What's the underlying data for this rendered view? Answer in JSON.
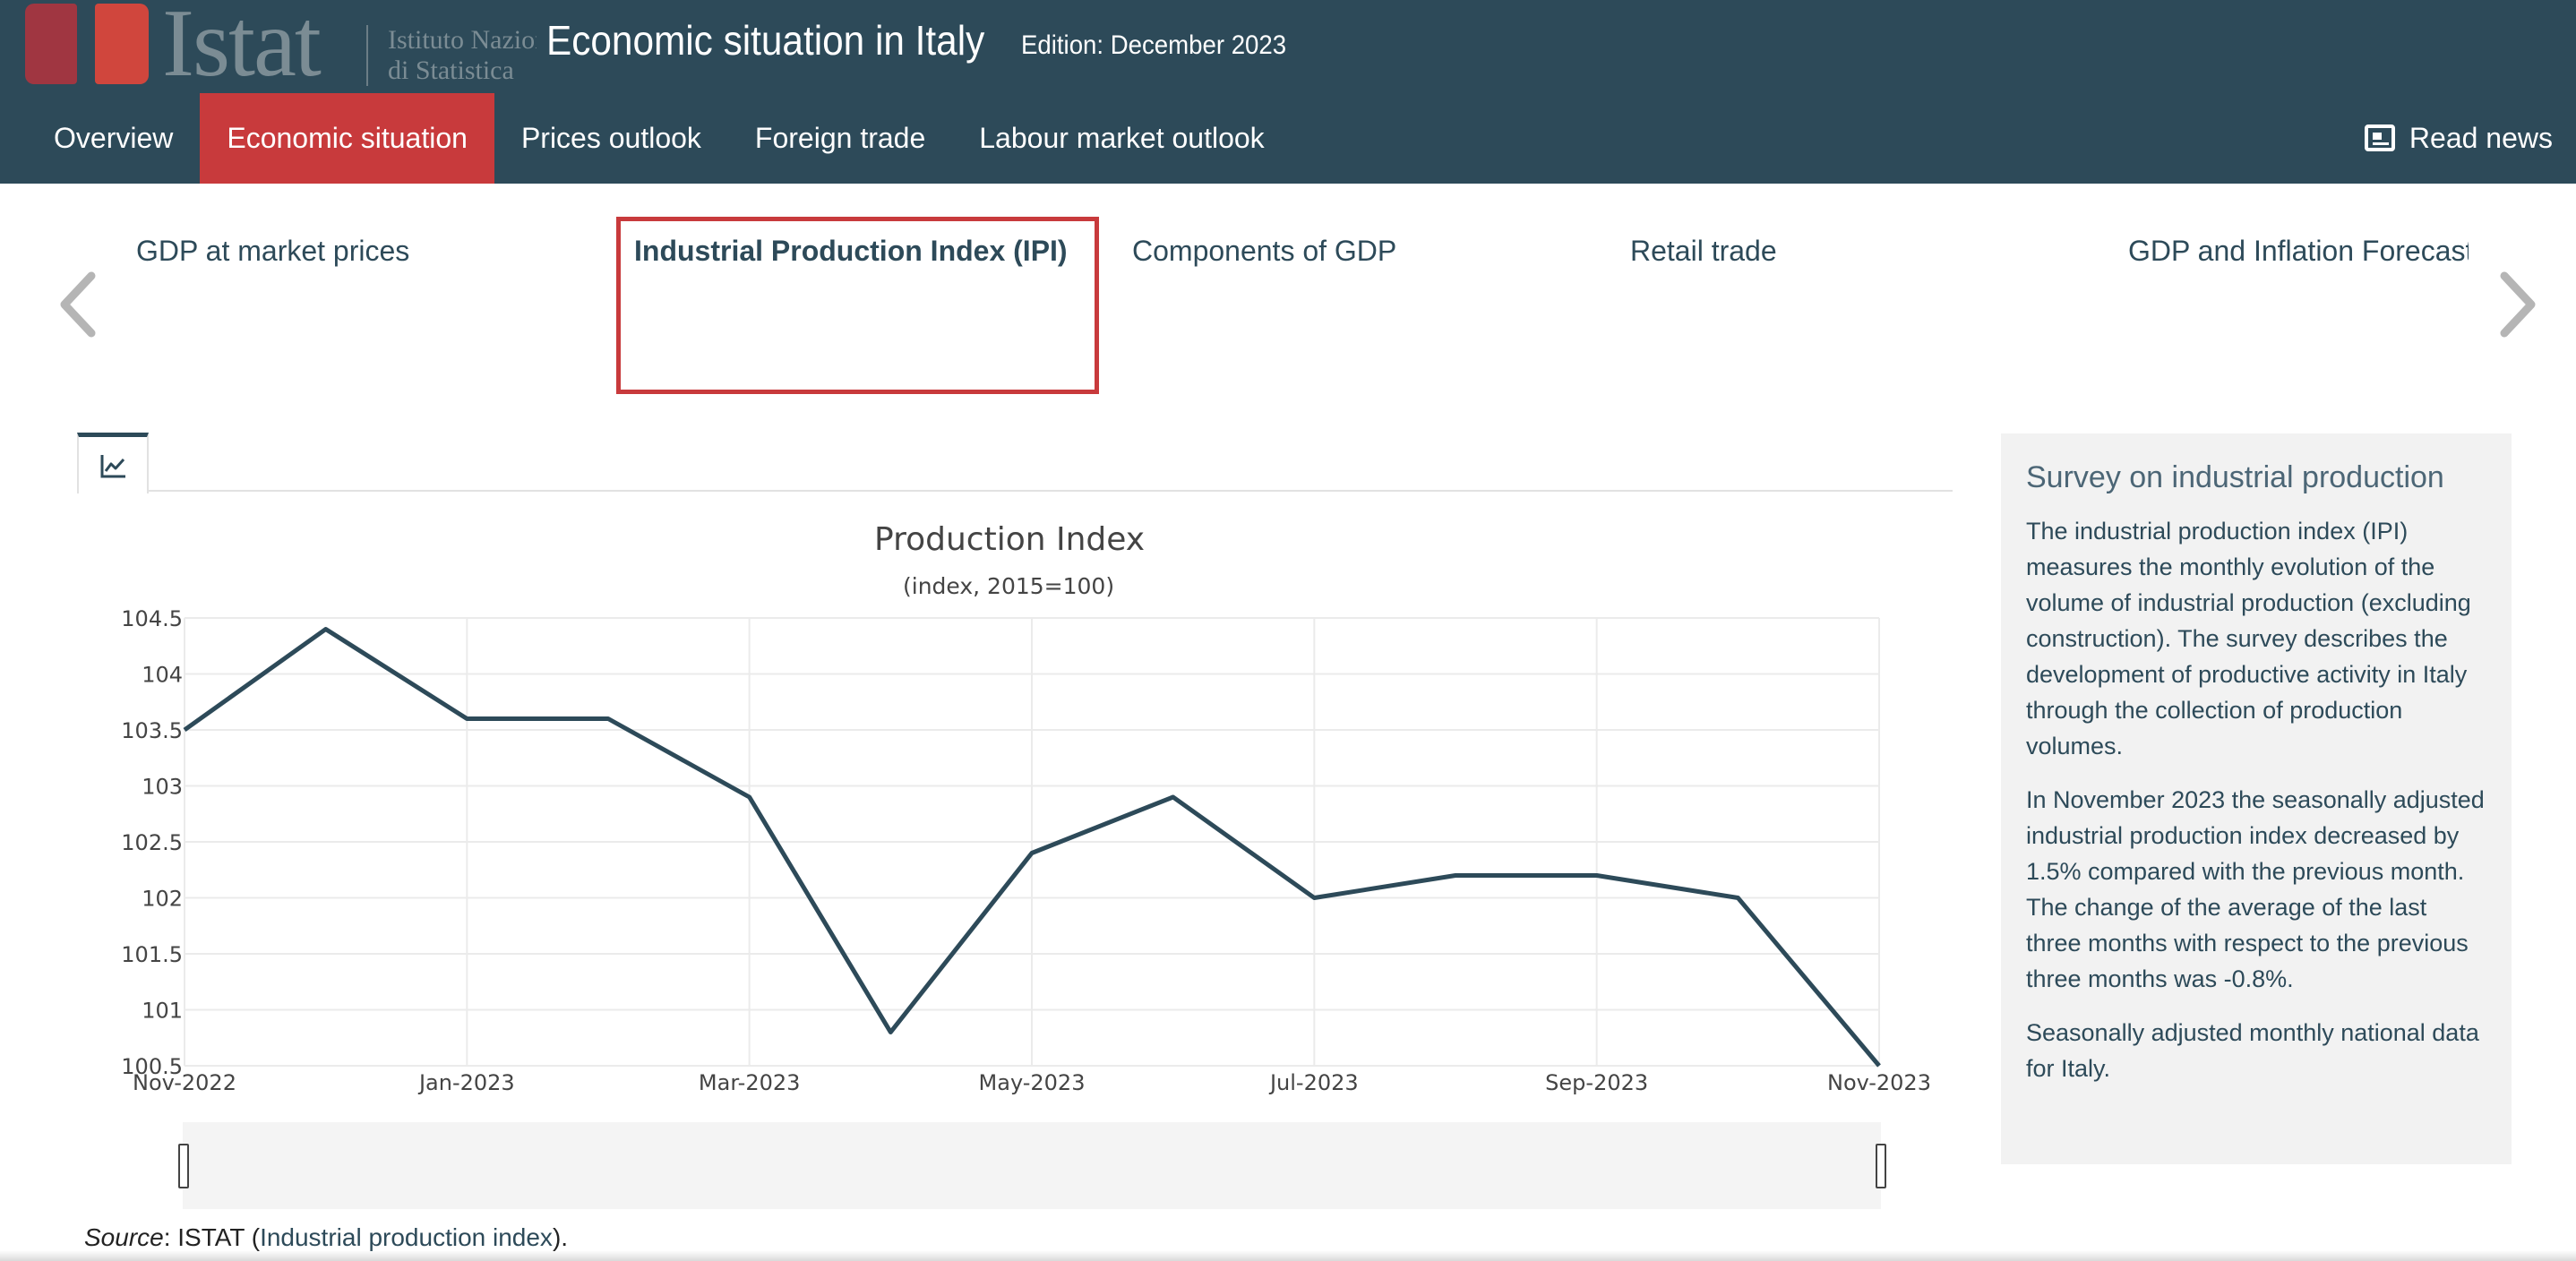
{
  "header": {
    "logo_word": "Istat",
    "logo_sub_line1": "Istituto Nazionale",
    "logo_sub_line2": "di Statistica",
    "title": "Economic situation in Italy",
    "edition": "Edition: December 2023",
    "read_news": "Read news"
  },
  "nav": {
    "items": [
      {
        "label": "Overview"
      },
      {
        "label": "Economic situation"
      },
      {
        "label": "Prices outlook"
      },
      {
        "label": "Foreign trade"
      },
      {
        "label": "Labour market outlook"
      }
    ],
    "active_index": 1
  },
  "carousel": {
    "items": [
      {
        "label": "GDP at market prices"
      },
      {
        "label": "Industrial Production Index (IPI)"
      },
      {
        "label": "Components of GDP"
      },
      {
        "label": "Retail trade"
      },
      {
        "label": "GDP and Inflation Forecast"
      }
    ],
    "active_index": 1
  },
  "tabs": {
    "active_icon": "line-chart-icon"
  },
  "chart_data": {
    "type": "line",
    "title": "Production Index",
    "subtitle": "(index, 2015=100)",
    "xlabel": "",
    "ylabel": "",
    "x": [
      "Nov-2022",
      "Dec-2022",
      "Jan-2023",
      "Feb-2023",
      "Mar-2023",
      "Apr-2023",
      "May-2023",
      "Jun-2023",
      "Jul-2023",
      "Aug-2023",
      "Sep-2023",
      "Oct-2023",
      "Nov-2023"
    ],
    "series": [
      {
        "values": [
          103.5,
          104.4,
          103.6,
          103.6,
          102.9,
          100.8,
          102.4,
          102.9,
          102.0,
          102.2,
          102.2,
          102.0,
          100.5
        ]
      }
    ],
    "x_ticks": [
      "Nov-2022",
      "Jan-2023",
      "Mar-2023",
      "May-2023",
      "Jul-2023",
      "Sep-2023",
      "Nov-2023"
    ],
    "y_ticks": [
      "100.5",
      "101",
      "101.5",
      "102",
      "102.5",
      "103",
      "103.5",
      "104",
      "104.5"
    ],
    "ylim": [
      100.5,
      104.5
    ],
    "grid": true,
    "legend": "none",
    "range_slider": true,
    "line_color": "#2d4a59"
  },
  "source": {
    "label": "Source",
    "publisher": ": ISTAT (",
    "link_text": "Industrial production index",
    "suffix": ")."
  },
  "info": {
    "title": "Survey on industrial production",
    "paragraphs": [
      "The industrial production index (IPI) measures the monthly evolution of the volume of industrial production (excluding construction). The survey describes the development of productive activity in Italy through the collection of production volumes.",
      "In November 2023 the seasonally adjusted industrial production index decreased by 1.5% compared with the previous month. The change of the average of the last three months with respect to the previous three months was -0.8%.",
      "Seasonally adjusted monthly national data for Italy."
    ]
  },
  "colors": {
    "header_bg": "#2d4a59",
    "accent": "#c83a3c",
    "panel_bg": "#f2f2f2"
  }
}
